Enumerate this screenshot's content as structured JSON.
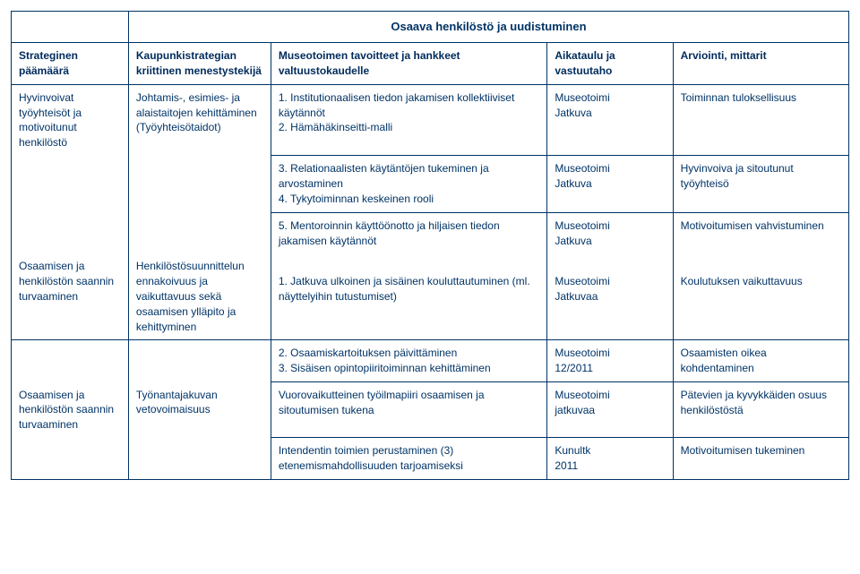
{
  "colors": {
    "text": "#003366",
    "border": "#003366",
    "background": "#ffffff"
  },
  "title": "Osaava henkilöstö ja uudistuminen",
  "header": {
    "col1": "Strateginen päämäärä",
    "col2": "Kaupunkistrategian kriittinen menestystekijä",
    "col3": "Museotoimen tavoitteet ja hankkeet valtuustokaudelle",
    "col4": "Aikataulu ja vastuutaho",
    "col5": "Arviointi, mittarit"
  },
  "rows": [
    {
      "c1": "Hyvinvoivat työyhteisöt ja motivoitunut henkilöstö",
      "c2": "Johtamis-, esimies- ja alaistaitojen kehittäminen (Työyhteisötaidot)",
      "c3": "1. Institutionaalisen tiedon jakamisen kollektiiviset käytännöt\n2. Hämähäkinseitti-malli",
      "c4": "Museotoimi\nJatkuva",
      "c5": "Toiminnan tuloksellisuus"
    },
    {
      "c1": "",
      "c2": "",
      "c3": "3. Relationaalisten käytäntöjen tukeminen ja arvostaminen\n4. Tykytoiminnan keskeinen rooli",
      "c4": "Museotoimi\nJatkuva",
      "c5": "Hyvinvoiva ja sitoutunut työyhteisö"
    },
    {
      "c1": "",
      "c2": "",
      "c3": "5. Mentoroinnin käyttöönotto ja hiljaisen tiedon jakamisen käytännöt",
      "c4": "Museotoimi\nJatkuva",
      "c5": "Motivoitumisen vahvistuminen"
    },
    {
      "c1": "Osaamisen ja henkilöstön saannin turvaaminen",
      "c2": "Henkilöstösuunnittelun ennakoivuus ja vaikuttavuus sekä osaamisen ylläpito ja kehittyminen",
      "c3": "\n1. Jatkuva ulkoinen ja sisäinen kouluttautuminen (ml. näyttelyihin tutustumiset)",
      "c4": "\nMuseotoimi\nJatkuvaa",
      "c5": "\nKoulutuksen vaikuttavuus"
    },
    {
      "c1": "",
      "c2": "",
      "c3": "2. Osaamiskartoituksen päivittäminen\n3. Sisäisen opintopiiritoiminnan kehittäminen",
      "c4": "Museotoimi\n12/2011",
      "c5": "Osaamisten oikea kohdentaminen"
    },
    {
      "c1": "Osaamisen ja henkilöstön saannin turvaaminen",
      "c2": "Työnantajakuvan vetovoimaisuus",
      "c3": "Vuorovaikutteinen työilmapiiri osaamisen ja sitoutumisen tukena",
      "c4": "Museotoimi\njatkuvaa",
      "c5": "Pätevien ja kyvykkäiden osuus henkilöstöstä"
    },
    {
      "c1": "",
      "c2": "",
      "c3": "Intendentin toimien perustaminen (3) etenemismahdollisuuden tarjoamiseksi",
      "c4": "Kunultk\n2011",
      "c5": "Motivoitumisen tukeminen"
    }
  ]
}
